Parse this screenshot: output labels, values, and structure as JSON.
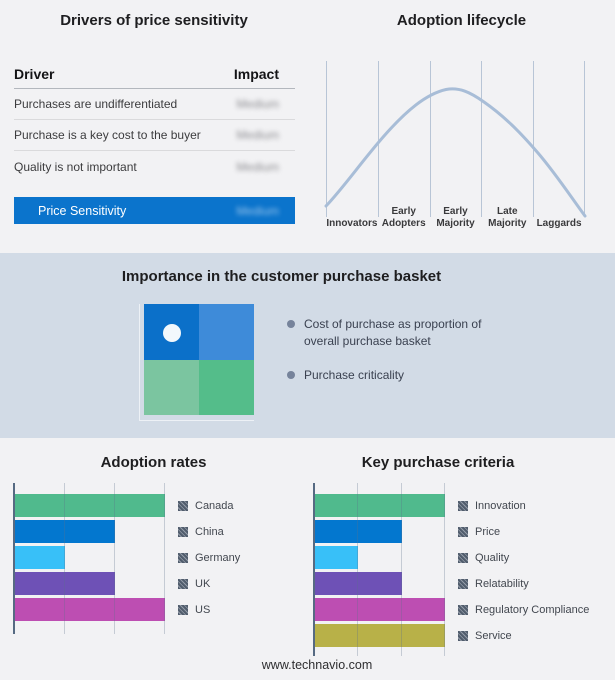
{
  "page": {
    "background": "#f2f2f4",
    "footer_url": "www.technavio.com"
  },
  "drivers_panel": {
    "title": "Drivers of price sensitivity",
    "columns": {
      "driver": "Driver",
      "impact": "Impact"
    },
    "rows": [
      {
        "label": "Purchases are undifferentiated",
        "impact": "Medium"
      },
      {
        "label": "Purchase is a key cost to the buyer",
        "impact": "Medium"
      },
      {
        "label": "Quality is not important",
        "impact": "Medium"
      }
    ],
    "highlight_row": {
      "label": "Price Sensitivity",
      "impact": "Medium"
    },
    "highlight_bg": "#0b74cc",
    "impact_values_obscured": true
  },
  "lifecycle_panel": {
    "title": "Adoption lifecycle",
    "segments": [
      "Innovators",
      "Early Adopters",
      "Early Majority",
      "Late Majority",
      "Laggards"
    ],
    "curve_color": "#a8bdd7",
    "gridline_color": "#b8c5d6"
  },
  "basket_panel": {
    "title": "Importance in the customer purchase basket",
    "band_bg": "#d2dbe6",
    "bullets": [
      "Cost of purchase as proportion of overall purchase basket",
      "Purchase criticality"
    ],
    "quadrant_colors": {
      "top_left": "#0b70c9",
      "top_right": "#3e8bd9",
      "bottom_left": "#7bc5a0",
      "bottom_right": "#54bd8a"
    }
  },
  "chart_data": [
    {
      "id": "adoption_rates",
      "type": "bar",
      "orientation": "horizontal",
      "title": "Adoption rates",
      "categories": [
        "Canada",
        "China",
        "Germany",
        "UK",
        "US"
      ],
      "values": [
        3,
        2,
        1,
        2,
        3
      ],
      "colors": [
        "#50ba8d",
        "#0377cf",
        "#38c0f8",
        "#6e51b6",
        "#bd4eb2"
      ],
      "xlim": [
        0,
        3
      ],
      "gridlines": [
        1,
        2,
        3
      ],
      "axis_tick_labels": "none shown",
      "legend_position": "right"
    },
    {
      "id": "key_purchase_criteria",
      "type": "bar",
      "orientation": "horizontal",
      "title": "Key purchase criteria",
      "categories": [
        "Innovation",
        "Price",
        "Quality",
        "Relatability",
        "Regulatory Compliance",
        "Service"
      ],
      "values": [
        3,
        2,
        1,
        2,
        3,
        3
      ],
      "colors": [
        "#50ba8d",
        "#0377cf",
        "#38c0f8",
        "#6e51b6",
        "#bd4eb2",
        "#b8b148"
      ],
      "xlim": [
        0,
        3
      ],
      "gridlines": [
        1,
        2,
        3
      ],
      "axis_tick_labels": "none shown",
      "legend_position": "right"
    },
    {
      "id": "adoption_lifecycle",
      "type": "line",
      "title": "Adoption lifecycle",
      "categories": [
        "Innovators",
        "Early Adopters",
        "Early Majority",
        "Late Majority",
        "Laggards"
      ],
      "shape": "bell curve peaking over the Early Majority segment",
      "y_axis": "none (schematic)"
    }
  ]
}
